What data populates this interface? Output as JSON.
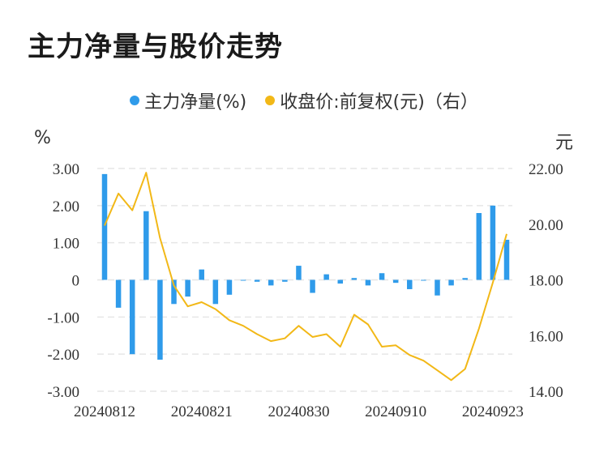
{
  "title": "主力净量与股价走势",
  "legend": {
    "bar_label": "主力净量(%)",
    "line_label": "收盘价:前复权(元)（右）"
  },
  "axes": {
    "left_unit": "%",
    "right_unit": "元"
  },
  "colors": {
    "bar": "#2f9bea",
    "line": "#f2b817",
    "grid": "#e6e6e6"
  },
  "chart_data": {
    "type": "bar",
    "x_tick_labels": [
      "20240812",
      "20240821",
      "20240830",
      "20240910",
      "20240923"
    ],
    "left_axis": {
      "ylim": [
        -3.0,
        3.0
      ],
      "ticks": [
        "3.00",
        "2.00",
        "1.00",
        "0",
        "-1.00",
        "-2.00",
        "-3.00"
      ]
    },
    "right_axis": {
      "ylim": [
        14.0,
        22.0
      ],
      "ticks": [
        "22.00",
        "20.00",
        "18.00",
        "16.00",
        "14.00"
      ]
    },
    "grid": true,
    "legend_position": "top-center",
    "series": [
      {
        "name": "主力净量(%)",
        "type": "bar",
        "axis": "left",
        "values": [
          2.85,
          -0.75,
          -2.0,
          1.85,
          -2.15,
          -0.65,
          -0.45,
          0.28,
          -0.65,
          -0.4,
          -0.02,
          -0.05,
          -0.15,
          -0.05,
          0.38,
          -0.35,
          0.15,
          -0.1,
          0.05,
          -0.15,
          0.18,
          -0.08,
          -0.25,
          -0.02,
          -0.42,
          -0.15,
          0.05,
          1.8,
          2.0,
          1.08
        ]
      },
      {
        "name": "收盘价:前复权(元)（右）",
        "type": "line",
        "axis": "right",
        "values": [
          19.95,
          21.1,
          20.5,
          21.85,
          19.5,
          17.8,
          17.05,
          17.2,
          16.95,
          16.55,
          16.35,
          16.05,
          15.8,
          15.9,
          16.35,
          15.95,
          16.05,
          15.6,
          16.75,
          16.4,
          15.6,
          15.65,
          15.3,
          15.1,
          14.75,
          14.4,
          14.8,
          16.25,
          17.9,
          19.65
        ]
      }
    ],
    "xlabel": "",
    "ylabel": ""
  }
}
